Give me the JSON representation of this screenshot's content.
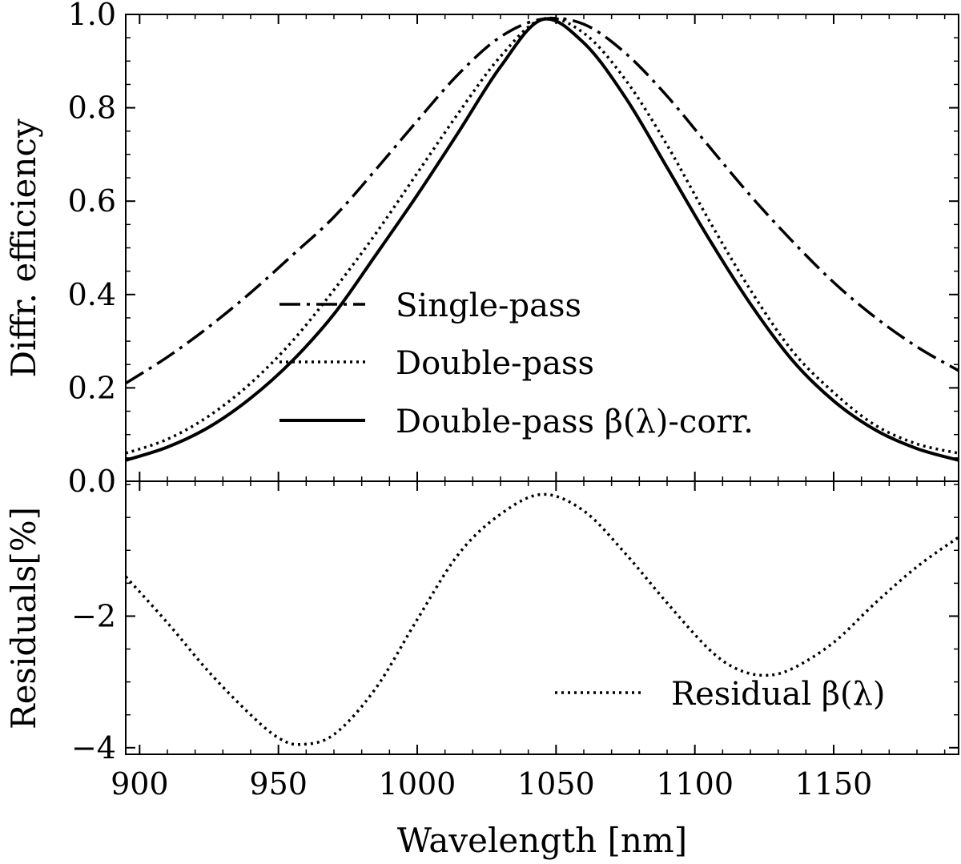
{
  "chart_data": [
    {
      "panel": "top",
      "type": "line",
      "xlabel": "",
      "ylabel": "Diffr. efficiency",
      "xlim": [
        895,
        1195
      ],
      "ylim": [
        0.0,
        1.0
      ],
      "yticks": [
        "0.0",
        "0.2",
        "0.4",
        "0.6",
        "0.8",
        "1.0"
      ],
      "legend_position": "center",
      "series": [
        {
          "name": "Single-pass",
          "style": "dash-dot",
          "x": [
            895,
            910,
            925,
            940,
            955,
            970,
            985,
            1000,
            1015,
            1030,
            1045,
            1060,
            1075,
            1090,
            1105,
            1120,
            1135,
            1150,
            1165,
            1180,
            1195
          ],
          "values": [
            0.21,
            0.266,
            0.331,
            0.404,
            0.484,
            0.566,
            0.667,
            0.772,
            0.873,
            0.952,
            0.99,
            0.979,
            0.917,
            0.825,
            0.718,
            0.612,
            0.515,
            0.426,
            0.351,
            0.288,
            0.237
          ]
        },
        {
          "name": "Double-pass",
          "style": "dotted",
          "x": [
            895,
            910,
            925,
            940,
            955,
            970,
            985,
            1000,
            1015,
            1030,
            1045,
            1060,
            1075,
            1090,
            1105,
            1120,
            1135,
            1150,
            1165,
            1180,
            1195
          ],
          "values": [
            0.06,
            0.09,
            0.14,
            0.21,
            0.3,
            0.41,
            0.53,
            0.66,
            0.79,
            0.91,
            0.99,
            0.96,
            0.86,
            0.72,
            0.56,
            0.41,
            0.28,
            0.19,
            0.12,
            0.08,
            0.06
          ]
        },
        {
          "name": "Double-pass β(λ)-corr.",
          "style": "solid",
          "x": [
            895,
            910,
            925,
            940,
            955,
            970,
            985,
            1000,
            1015,
            1030,
            1045,
            1060,
            1075,
            1090,
            1105,
            1120,
            1135,
            1150,
            1165,
            1180,
            1195
          ],
          "values": [
            0.045,
            0.073,
            0.116,
            0.178,
            0.258,
            0.358,
            0.484,
            0.613,
            0.749,
            0.888,
            0.989,
            0.939,
            0.822,
            0.672,
            0.52,
            0.38,
            0.26,
            0.172,
            0.11,
            0.07,
            0.045
          ]
        }
      ]
    },
    {
      "panel": "bottom",
      "type": "line",
      "xlabel": "Wavelength [nm]",
      "ylabel": "Residuals[%]",
      "xlim": [
        895,
        1195
      ],
      "ylim": [
        -4.1,
        0.05
      ],
      "yticks": [
        "−4",
        "−2"
      ],
      "xticks": [
        "900",
        "950",
        "1000",
        "1050",
        "1100",
        "1150"
      ],
      "legend_position": "bottom-right",
      "series": [
        {
          "name": "Residual β(λ)",
          "style": "dotted",
          "x": [
            895,
            910,
            925,
            940,
            950,
            958,
            970,
            985,
            1000,
            1015,
            1030,
            1045,
            1060,
            1075,
            1090,
            1105,
            1115,
            1125,
            1135,
            1150,
            1165,
            1180,
            1195
          ],
          "values": [
            -1.4,
            -2.1,
            -2.85,
            -3.5,
            -3.85,
            -3.95,
            -3.8,
            -3.1,
            -2.05,
            -1.05,
            -0.45,
            -0.15,
            -0.4,
            -1.05,
            -1.8,
            -2.5,
            -2.8,
            -2.9,
            -2.8,
            -2.4,
            -1.8,
            -1.25,
            -0.8
          ]
        }
      ]
    }
  ]
}
